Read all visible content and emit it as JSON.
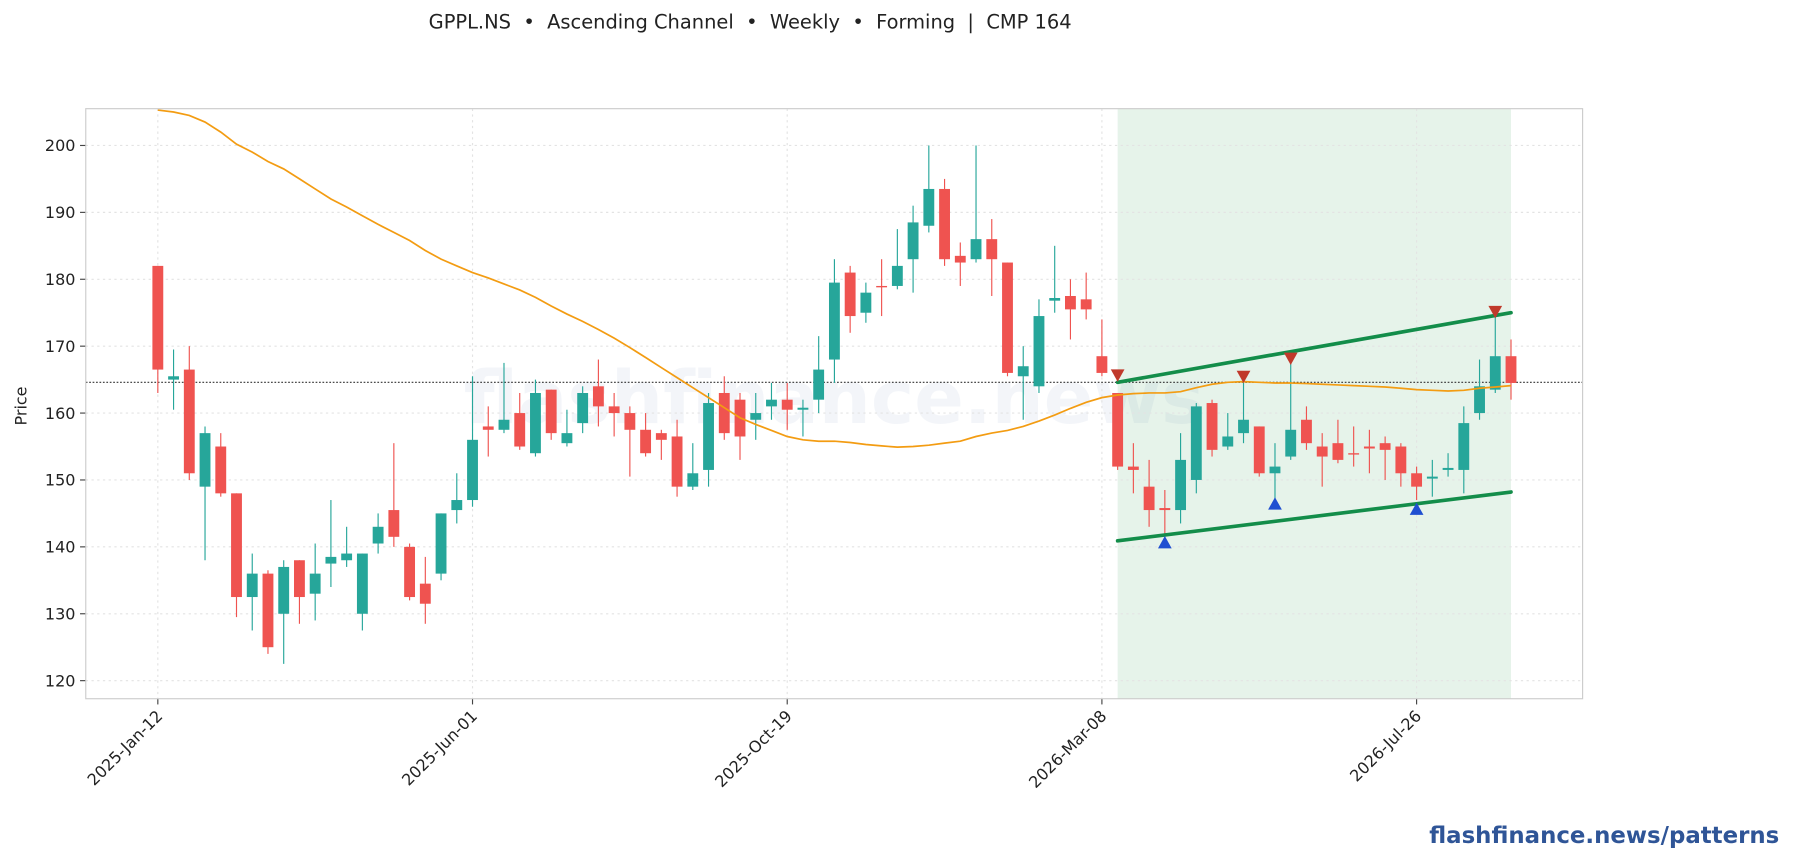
{
  "chart_data": {
    "type": "candlestick",
    "title": "GPPL.NS  •  Ascending Channel  •  Weekly  •  Forming  |  CMP 164",
    "y_label": "Price",
    "source": "flashfinance.news/patterns",
    "watermark": "flashfinance.news",
    "categories": [
      "2025-Jan-12",
      null,
      null,
      null,
      null,
      null,
      null,
      null,
      null,
      null,
      null,
      null,
      null,
      null,
      null,
      null,
      null,
      null,
      null,
      null,
      "2025-Jun-01",
      null,
      null,
      null,
      null,
      null,
      null,
      null,
      null,
      null,
      null,
      null,
      null,
      null,
      null,
      null,
      null,
      null,
      null,
      null,
      "2025-Oct-19",
      null,
      null,
      null,
      null,
      null,
      null,
      null,
      null,
      null,
      null,
      null,
      null,
      null,
      null,
      null,
      null,
      null,
      null,
      null,
      "2026-Mar-08",
      null,
      null,
      null,
      null,
      null,
      null,
      null,
      null,
      null,
      null,
      null,
      null,
      null,
      null,
      null,
      null,
      null,
      null,
      null,
      "2026-Jul-26",
      null,
      null,
      null,
      null,
      null,
      null
    ],
    "open": [
      182,
      165,
      166.5,
      149,
      155,
      148,
      132.5,
      136,
      130,
      138,
      133,
      137.5,
      138,
      130,
      140.5,
      145.5,
      140,
      134.5,
      136,
      145.5,
      147,
      158,
      157.5,
      160,
      154,
      163.5,
      155.5,
      158.5,
      164,
      161,
      160,
      157.5,
      157,
      156.5,
      149,
      151.5,
      163,
      162,
      159,
      161,
      162,
      160.5,
      162,
      168,
      181,
      175,
      179,
      179,
      183,
      188,
      193.5,
      183.5,
      183,
      186,
      182.5,
      165.5,
      164,
      176.8,
      177.5,
      177,
      168.5,
      163,
      152,
      149,
      145.8,
      145.5,
      150,
      161.5,
      155,
      157,
      158,
      151,
      153.5,
      159,
      155,
      155.5,
      154,
      155,
      155.5,
      155,
      151,
      150.2,
      151.5,
      151.5,
      160,
      163.5,
      168.5
    ],
    "high": [
      182,
      169.5,
      170,
      158,
      157,
      148,
      139,
      136.5,
      138,
      138,
      140.5,
      147,
      143,
      139,
      145,
      155.5,
      140.5,
      138.5,
      145,
      151,
      165.5,
      161,
      167.5,
      163,
      165,
      163.5,
      160.5,
      164,
      168,
      163,
      161,
      160,
      157.5,
      159,
      155.5,
      163,
      165.5,
      163,
      163,
      164.5,
      164.5,
      162,
      171.5,
      183,
      182,
      179.5,
      183,
      187.5,
      191,
      200,
      195,
      185.5,
      200,
      189,
      182.5,
      170,
      177,
      185,
      180,
      181,
      174,
      163,
      155.5,
      153,
      148.5,
      157,
      161.5,
      162,
      160,
      164.5,
      158,
      155.5,
      168,
      161,
      157,
      159,
      158,
      157.5,
      156.5,
      155.5,
      152,
      153,
      154,
      161,
      168,
      174.5,
      171
    ],
    "low": [
      163,
      160.5,
      150,
      138,
      147.5,
      129.5,
      127.5,
      124,
      122.5,
      128.5,
      129,
      134,
      137,
      127.5,
      139,
      140,
      132,
      128.5,
      135,
      143.5,
      146,
      153.5,
      157,
      154.5,
      153.5,
      156,
      155,
      157,
      158,
      156.5,
      150.5,
      153.5,
      153,
      147.5,
      148.5,
      149,
      156,
      153,
      156,
      159,
      157.5,
      156.5,
      160,
      164.5,
      172,
      173.5,
      174.5,
      178.5,
      178,
      187,
      182,
      179,
      182.5,
      177.5,
      165.5,
      159,
      163,
      175,
      171,
      174,
      165.5,
      151.5,
      148,
      143,
      141.5,
      143.5,
      148,
      153.5,
      154.5,
      155.5,
      150.5,
      147,
      153,
      154.5,
      149,
      152.5,
      152,
      151,
      150,
      149,
      147,
      147.5,
      150.5,
      148,
      159,
      163,
      162
    ],
    "close": [
      166.5,
      165.5,
      151,
      157,
      148,
      132.5,
      136,
      125,
      137,
      132.5,
      136,
      138.5,
      139,
      139,
      143,
      141.5,
      132.5,
      131.5,
      145,
      147,
      156,
      157.5,
      159,
      155,
      163,
      157,
      157,
      163,
      161,
      160,
      157.5,
      154,
      156,
      149,
      151,
      161.5,
      157,
      156.5,
      160,
      162,
      160.5,
      160.8,
      166.5,
      179.5,
      174.5,
      178,
      178.8,
      182,
      188.5,
      193.5,
      183,
      182.5,
      186,
      183,
      166,
      167,
      174.5,
      177.2,
      175.5,
      175.5,
      166,
      152,
      151.5,
      145.5,
      145.5,
      153,
      161,
      154.5,
      156.5,
      159,
      151,
      152,
      157.5,
      155.5,
      153.5,
      153,
      153.8,
      154.7,
      154.5,
      151,
      149,
      150.5,
      151.8,
      158.5,
      164,
      168.5,
      164.5
    ],
    "up_color": "#26a69a",
    "down_color": "#ef5350",
    "moving_average": {
      "color": "#f39c12",
      "values": [
        205.3,
        205,
        204.5,
        203.5,
        202,
        200.2,
        199,
        197.6,
        196.5,
        195,
        193.5,
        192,
        190.8,
        189.5,
        188.2,
        187,
        185.8,
        184.3,
        183,
        182,
        181,
        180.2,
        179.3,
        178.4,
        177.3,
        176,
        174.8,
        173.7,
        172.5,
        171.2,
        169.8,
        168.3,
        166.8,
        165.3,
        163.8,
        162.3,
        160.8,
        159.3,
        158.3,
        157.4,
        156.5,
        156,
        155.8,
        155.8,
        155.6,
        155.3,
        155.1,
        154.9,
        155,
        155.2,
        155.5,
        155.8,
        156.5,
        157,
        157.4,
        158,
        158.8,
        159.7,
        160.7,
        161.6,
        162.3,
        162.7,
        162.9,
        163,
        163,
        163.2,
        163.8,
        164.3,
        164.6,
        164.7,
        164.6,
        164.5,
        164.5,
        164.4,
        164.3,
        164.2,
        164.1,
        164,
        163.9,
        163.7,
        163.5,
        163.4,
        163.3,
        163.4,
        163.7,
        163.9,
        164.1
      ]
    },
    "reference_line": {
      "value": 164.6,
      "color": "#333333"
    },
    "channel": {
      "x": [
        61,
        86
      ],
      "upper": [
        164.6,
        175
      ],
      "lower": [
        140.9,
        148.2
      ],
      "color": "#138d4a",
      "fill": "#e6f3ea"
    },
    "pivot_highs": {
      "x": [
        61,
        69,
        72,
        85
      ],
      "values": [
        165.5,
        165.3,
        168,
        175
      ],
      "color": "#c0392b"
    },
    "pivot_lows": {
      "x": [
        64,
        71,
        80
      ],
      "values": [
        140.8,
        146.6,
        145.8
      ],
      "color": "#1f4fd1"
    },
    "xlim": [
      -4.58,
      90.55
    ],
    "ylim": [
      117.3,
      205.5
    ],
    "yticks": [
      120,
      130,
      140,
      150,
      160,
      170,
      180,
      190,
      200
    ],
    "grid": true
  }
}
